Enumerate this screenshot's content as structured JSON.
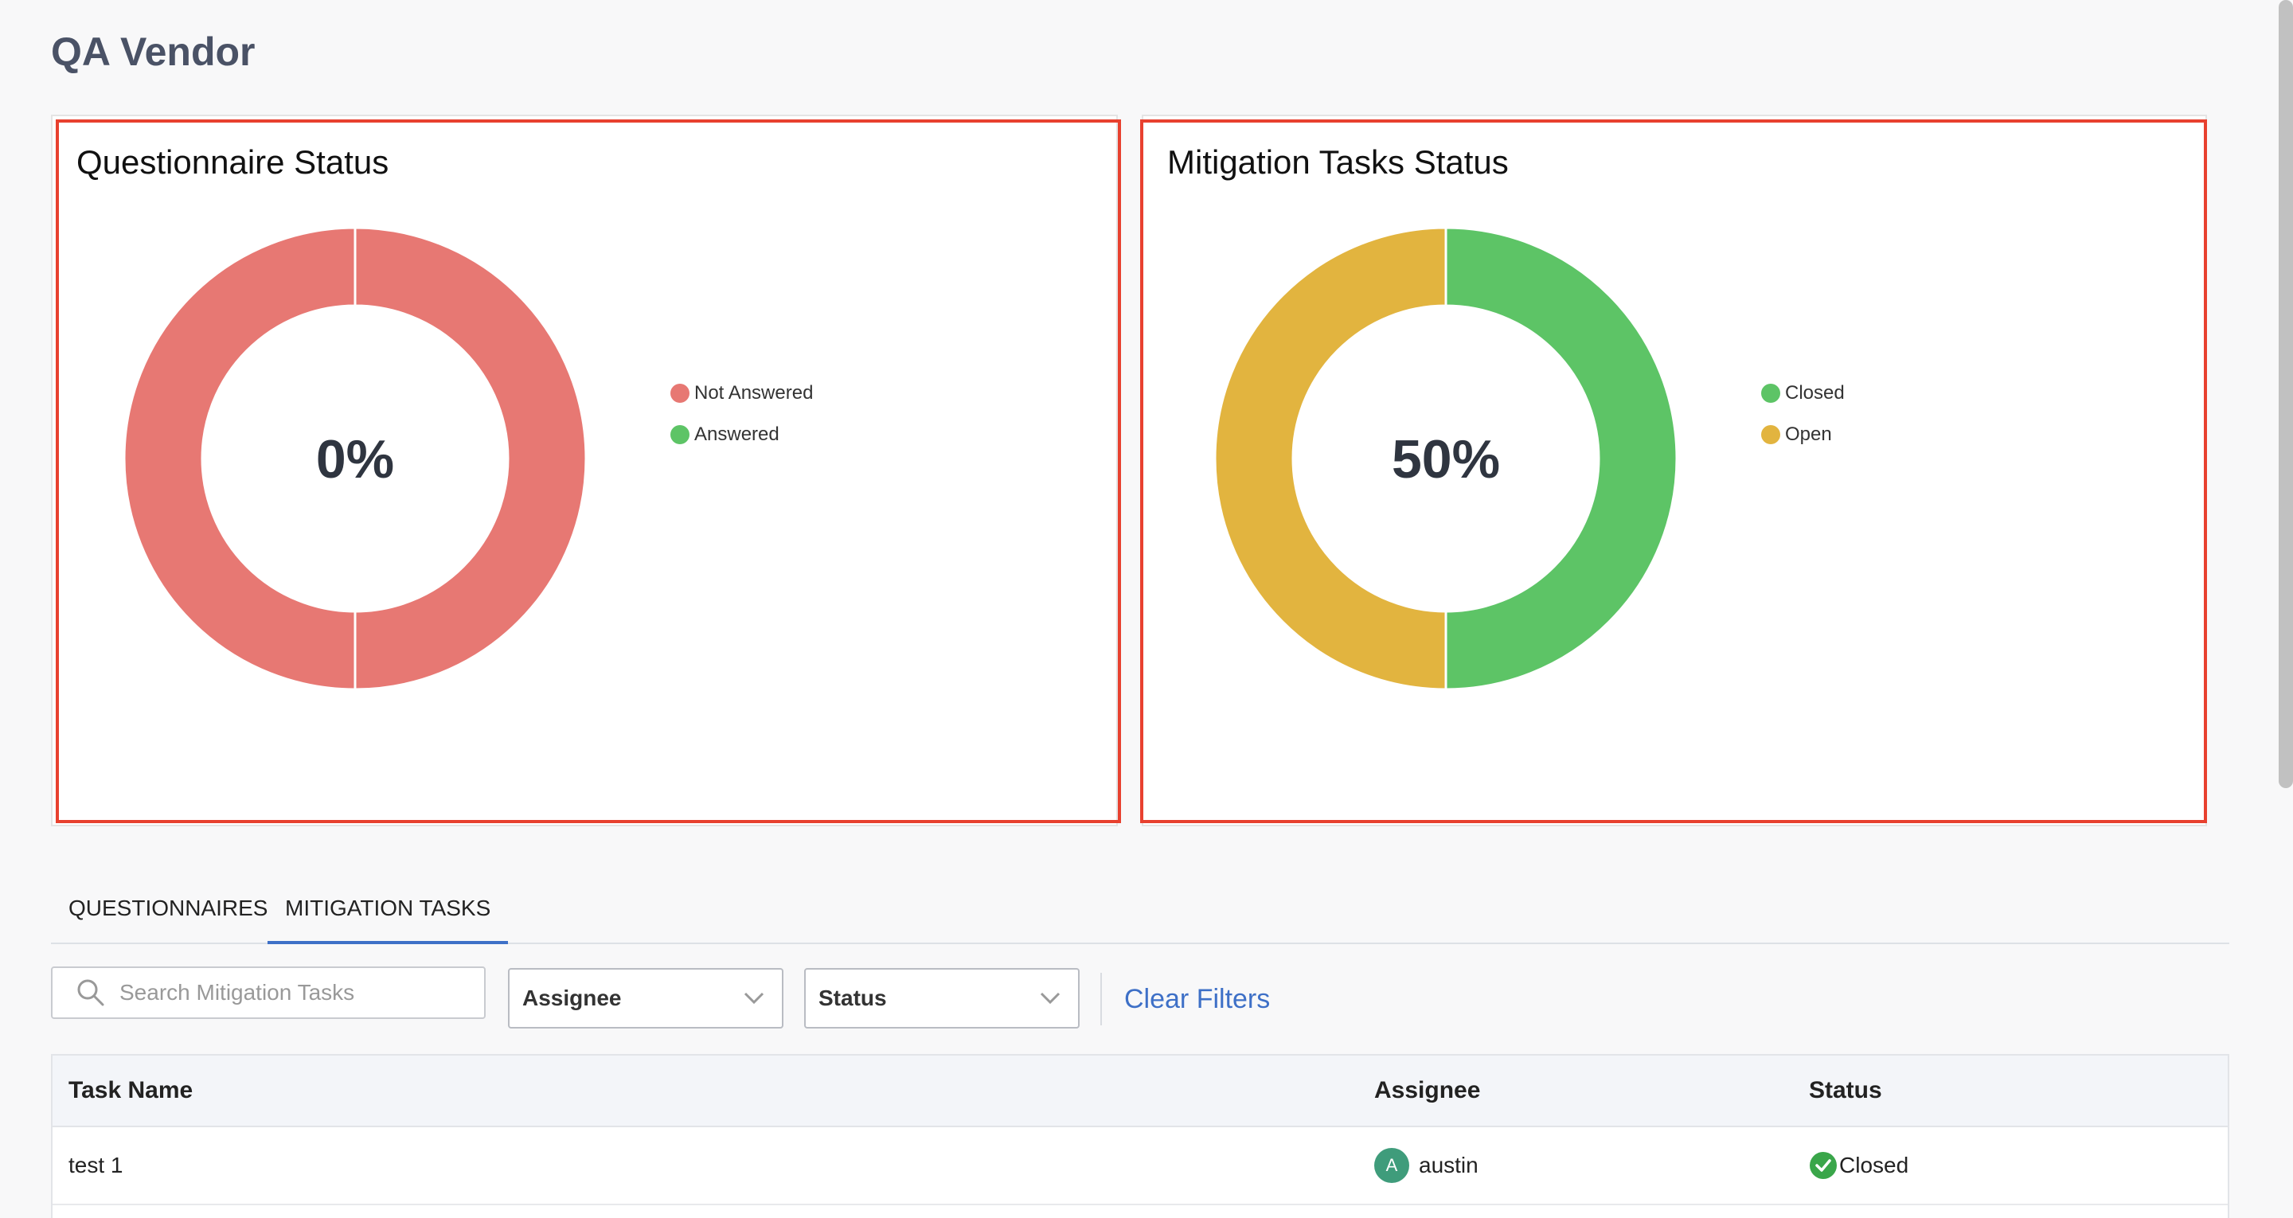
{
  "page": {
    "title": "QA Vendor"
  },
  "questionnaire_card": {
    "title": "Questionnaire Status",
    "center_label": "0%",
    "legend": [
      {
        "label": "Not Answered",
        "color": "#e77873"
      },
      {
        "label": "Answered",
        "color": "#5dc466"
      }
    ]
  },
  "mitigation_card": {
    "title": "Mitigation Tasks Status",
    "center_label": "50%",
    "legend": [
      {
        "label": "Closed",
        "color": "#5dc466"
      },
      {
        "label": "Open",
        "color": "#e2b43f"
      }
    ]
  },
  "chart_data": [
    {
      "type": "pie",
      "title": "Questionnaire Status",
      "categories": [
        "Not Answered",
        "Answered"
      ],
      "values": [
        100,
        0
      ],
      "colors": [
        "#e77873",
        "#5dc466"
      ],
      "center_label": "0%",
      "legend_position": "right"
    },
    {
      "type": "pie",
      "title": "Mitigation Tasks Status",
      "categories": [
        "Closed",
        "Open"
      ],
      "values": [
        50,
        50
      ],
      "colors": [
        "#5dc466",
        "#e2b43f"
      ],
      "center_label": "50%",
      "legend_position": "right"
    }
  ],
  "tabs": [
    {
      "label": "QUESTIONNAIRES",
      "active": false
    },
    {
      "label": "MITIGATION TASKS",
      "active": true
    }
  ],
  "filters": {
    "search_placeholder": "Search Mitigation Tasks",
    "assignee_label": "Assignee",
    "status_label": "Status",
    "clear_label": "Clear Filters"
  },
  "table": {
    "columns": [
      "Task Name",
      "Assignee",
      "Status"
    ],
    "rows": [
      {
        "task": "test 1",
        "assignee_initial": "A",
        "assignee": "austin",
        "status": "Closed"
      }
    ]
  },
  "colors": {
    "accent": "#3e70c7",
    "highlight": "#e8412f"
  }
}
